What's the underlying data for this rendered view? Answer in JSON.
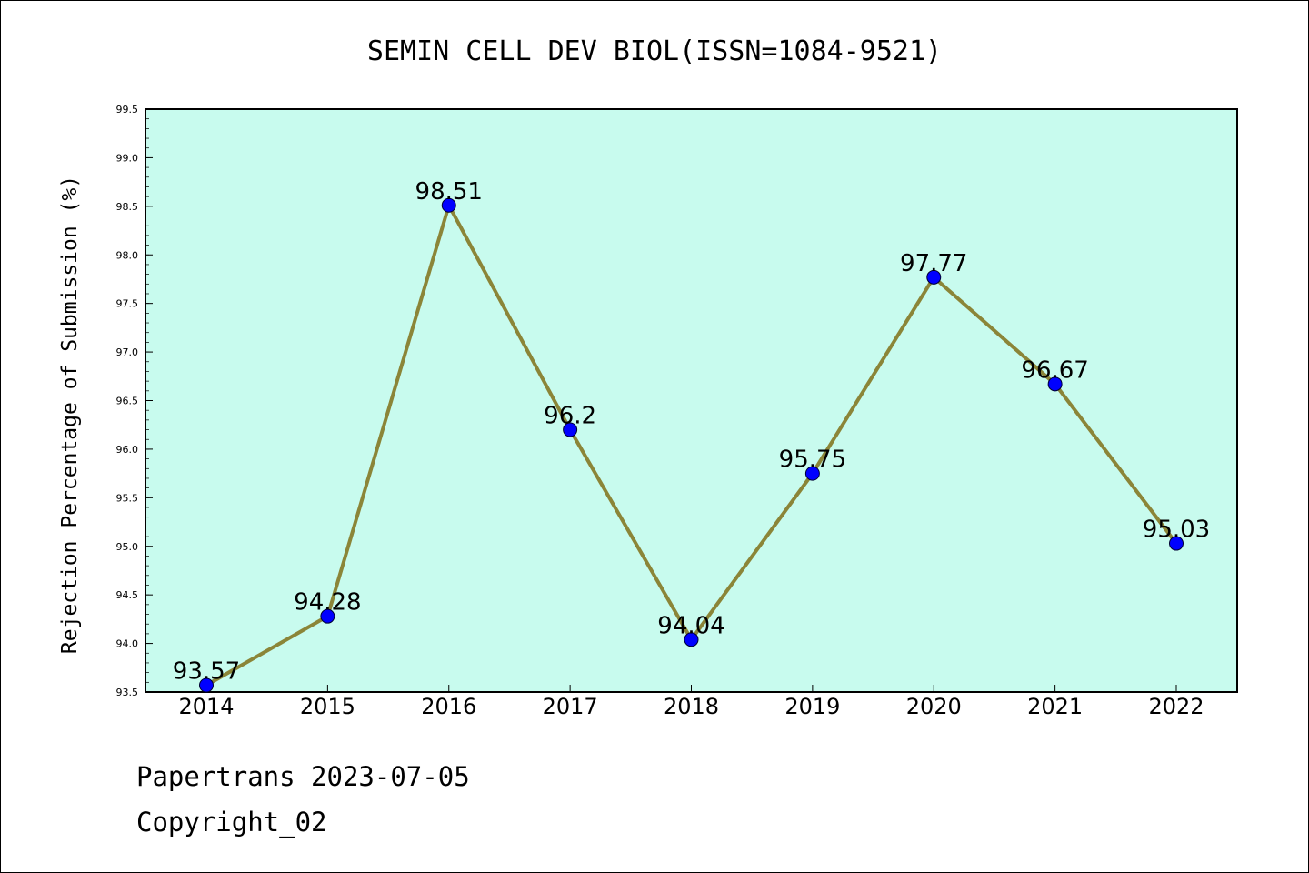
{
  "footer": {
    "line1": "Papertrans 2023-07-05",
    "line2": "Copyright_02"
  },
  "chart_data": {
    "type": "line",
    "title": "SEMIN CELL DEV BIOL(ISSN=1084-9521)",
    "xlabel": "",
    "ylabel": "Rejection Percentage of Submission (%)",
    "categories": [
      "2014",
      "2015",
      "2016",
      "2017",
      "2018",
      "2019",
      "2020",
      "2021",
      "2022"
    ],
    "series": [
      {
        "values": [
          93.57,
          94.28,
          98.51,
          96.2,
          94.04,
          95.75,
          97.77,
          96.67,
          95.03
        ],
        "labels": [
          "93.57",
          "94.28",
          "98.51",
          "96.2",
          "94.04",
          "95.75",
          "97.77",
          "96.67",
          "95.03"
        ]
      }
    ],
    "ylim": [
      93.5,
      99.5
    ],
    "yticks": [
      "93.5",
      "94.0",
      "94.5",
      "95.0",
      "95.5",
      "96.0",
      "96.5",
      "97.0",
      "97.5",
      "98.0",
      "98.5",
      "99.0",
      "99.5"
    ],
    "grid": false,
    "legend": "none",
    "colors": {
      "plot_background": "#c8fbee",
      "line": "#8b8538",
      "marker": "#0000ff"
    }
  }
}
